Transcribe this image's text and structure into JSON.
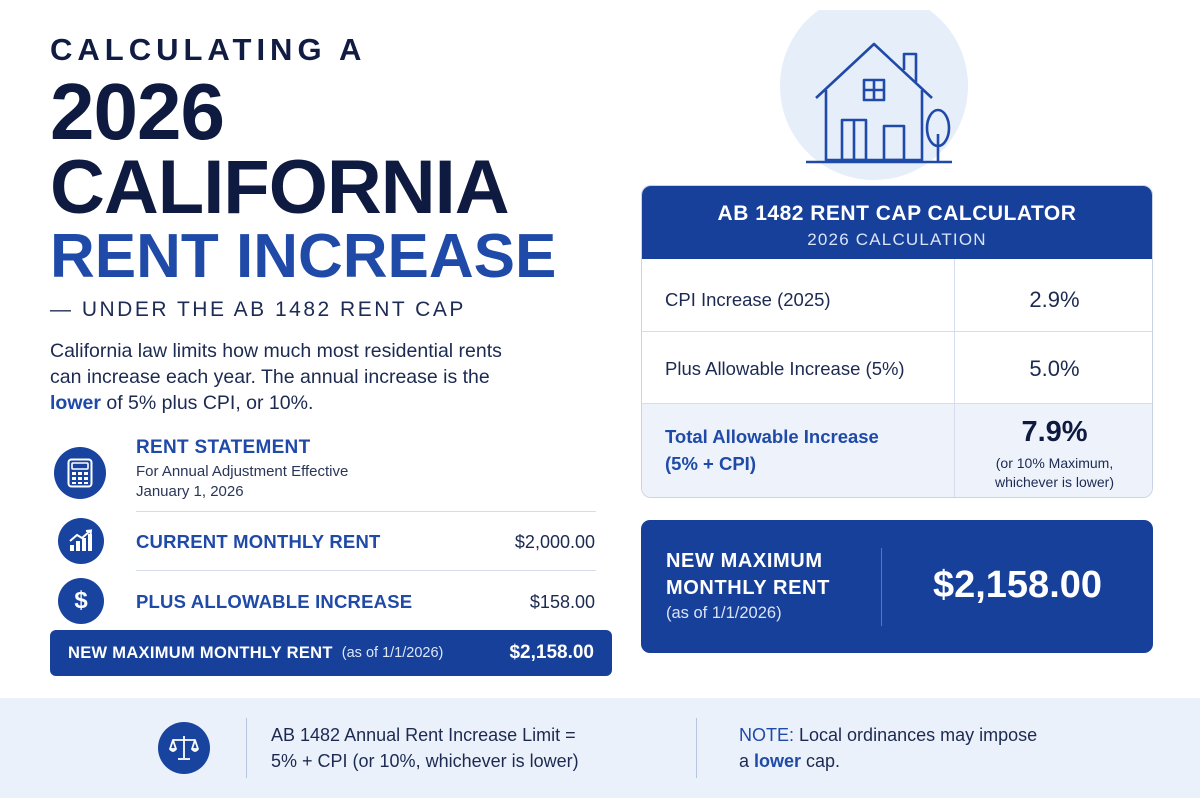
{
  "headline": {
    "kicker": "CALCULATING A",
    "line1": "2026",
    "line2": "CALIFORNIA",
    "line3": "RENT INCREASE",
    "subtitle": "— UNDER THE AB 1482 RENT CAP"
  },
  "intro": {
    "part1": "California law limits how much most residential rents can increase each year. The annual increase is the ",
    "highlight": "lower",
    "part2": " of 5% plus CPI, or 10%."
  },
  "statement": {
    "icon": "calculator-icon",
    "title": "RENT STATEMENT",
    "sub_line1": "For Annual Adjustment Effective",
    "sub_line2": "January 1, 2026",
    "rows": [
      {
        "icon": "chart-growth-icon",
        "label": "CURRENT MONTHLY RENT",
        "value": "$2,000.00"
      },
      {
        "icon": "dollar-icon",
        "label": "PLUS ALLOWABLE INCREASE",
        "value": "$158.00"
      }
    ],
    "new_bar": {
      "label": "NEW MAXIMUM MONTHLY RENT",
      "asof": "(as of 1/1/2026)",
      "amount": "$2,158.00"
    }
  },
  "illustration": {
    "icon": "house-icon"
  },
  "calculator": {
    "title": "AB 1482 RENT CAP CALCULATOR",
    "subtitle": "2026 CALCULATION",
    "rows": [
      {
        "label": "CPI Increase (2025)",
        "value": "2.9%"
      },
      {
        "label": "Plus Allowable Increase (5%)",
        "value": "5.0%"
      }
    ],
    "total": {
      "label_line1": "Total Allowable Increase",
      "label_line2": "(5% + CPI)",
      "value": "7.9%",
      "note_line1": "(or 10% Maximum,",
      "note_line2": "whichever is lower)"
    }
  },
  "max_rent": {
    "label_line1": "NEW MAXIMUM",
    "label_line2": "MONTHLY RENT",
    "asof": "(as of 1/1/2026)",
    "amount": "$2,158.00"
  },
  "footer": {
    "icon": "scales-icon",
    "limit_line1": "AB 1482 Annual Rent Increase Limit =",
    "limit_line2": "5% + CPI (or 10%, whichever is lower)",
    "note_prefix": "NOTE:",
    "note_text1": " Local ordinances may impose",
    "note_text2_pre": "a ",
    "note_highlight": "lower",
    "note_text2_post": " cap."
  },
  "colors": {
    "navy": "#0e1a3f",
    "accent_blue": "#1f4aa8",
    "panel_blue": "#17409a",
    "band_bg": "#ebf1fa"
  }
}
